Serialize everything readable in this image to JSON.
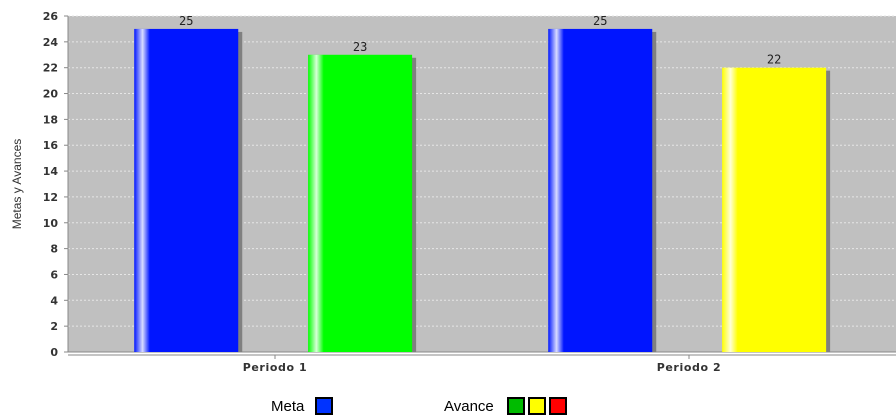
{
  "chart_data": {
    "type": "bar",
    "categories": [
      "Periodo 1",
      "Periodo 2"
    ],
    "series": [
      {
        "name": "Meta",
        "values": [
          25,
          25
        ]
      },
      {
        "name": "Avance",
        "values": [
          23,
          22
        ]
      }
    ],
    "bar_colors": [
      [
        "#0015ff",
        "#00ff00"
      ],
      [
        "#0015ff",
        "#ffff00"
      ]
    ],
    "ylabel": "Metas y Avances",
    "xlabel": "",
    "ylim": [
      0,
      26
    ],
    "yticks": [
      0,
      2,
      4,
      6,
      8,
      10,
      12,
      14,
      16,
      18,
      20,
      22,
      24,
      26
    ],
    "grid": true,
    "plot_background": "#c0c0c0",
    "legend_position": "bottom",
    "legend": [
      {
        "label": "Meta",
        "colors": [
          "#0033ff"
        ]
      },
      {
        "label": "Avance",
        "colors": [
          "#00bb00",
          "#ffff00",
          "#ff0000"
        ]
      }
    ]
  }
}
